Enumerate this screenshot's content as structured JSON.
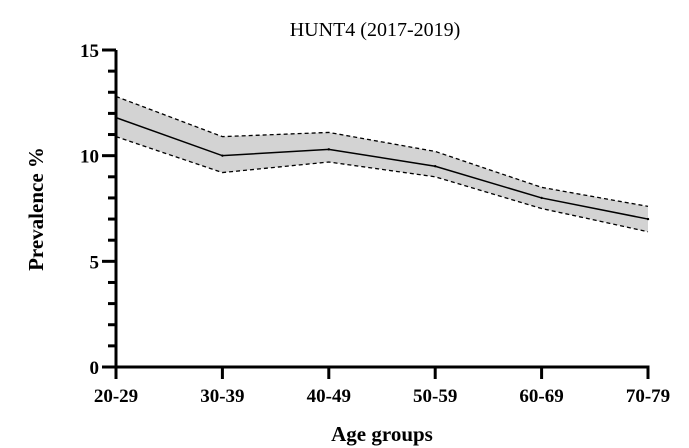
{
  "chart_data": {
    "type": "line",
    "title": "HUNT4 (2017-2019)",
    "xlabel": "Age groups",
    "ylabel": "Prevalence %",
    "categories": [
      "20-29",
      "30-39",
      "40-49",
      "50-59",
      "60-69",
      "70-79"
    ],
    "series": [
      {
        "values": [
          11.8,
          10.0,
          10.3,
          9.5,
          8.0,
          7.0
        ]
      }
    ],
    "ci_upper": [
      12.8,
      10.9,
      11.1,
      10.2,
      8.5,
      7.6
    ],
    "ci_lower": [
      10.9,
      9.2,
      9.7,
      9.0,
      7.5,
      6.4
    ],
    "ylim": [
      0,
      15
    ],
    "yticks": [
      0,
      5,
      10,
      15
    ],
    "yminor_step": 1,
    "grid": false,
    "colors": {
      "line": "#000000",
      "band_fill": "#d3d3d3",
      "band_edge": "#000000"
    }
  }
}
